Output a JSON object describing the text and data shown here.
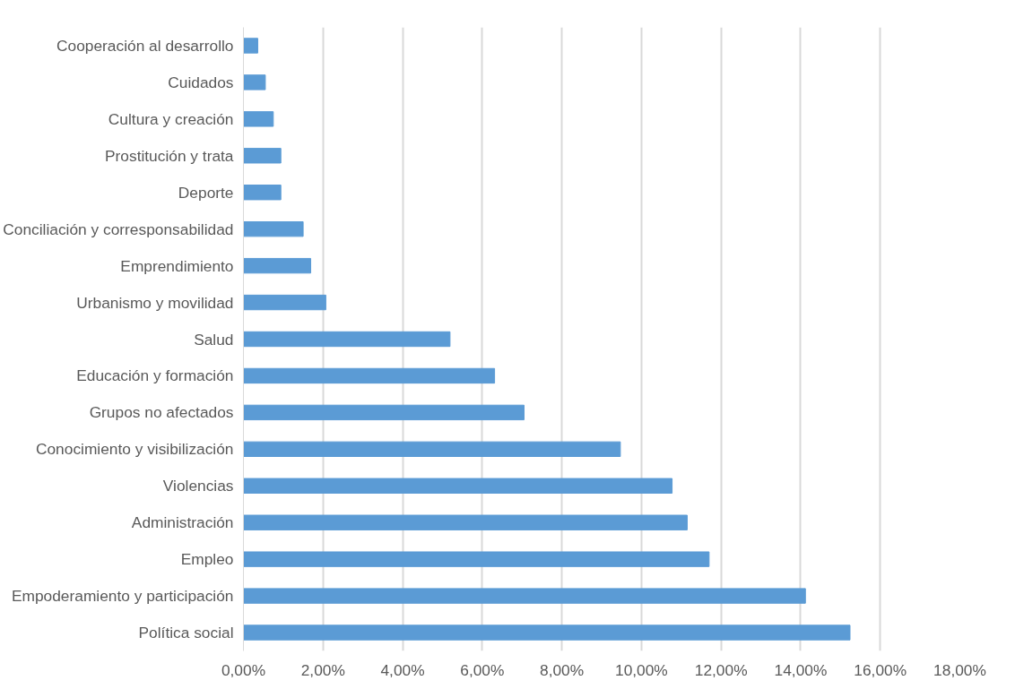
{
  "chart_data": {
    "type": "bar",
    "orientation": "horizontal",
    "categories": [
      "Cooperación al desarrollo",
      "Cuidados",
      "Cultura y creación",
      "Prostitución y trata",
      "Deporte",
      "Conciliación y corresponsabilidad",
      "Emprendimiento",
      "Urbanismo y movilidad",
      "Salud",
      "Educación y formación",
      "Grupos no afectados",
      "Conocimiento y visibilización",
      "Violencias",
      "Administración",
      "Empleo",
      "Empoderamiento y participación",
      "Política social"
    ],
    "values": [
      0.36,
      0.55,
      0.75,
      0.94,
      0.94,
      1.5,
      1.69,
      2.07,
      5.19,
      6.31,
      7.05,
      9.47,
      10.77,
      11.15,
      11.7,
      14.12,
      15.24
    ],
    "color": "#5b9bd5",
    "xlim": [
      0,
      18
    ],
    "xticks": [
      {
        "value": 0,
        "label": "0,00%"
      },
      {
        "value": 2,
        "label": "2,00%"
      },
      {
        "value": 4,
        "label": "4,00%"
      },
      {
        "value": 6,
        "label": "6,00%"
      },
      {
        "value": 8,
        "label": "8,00%"
      },
      {
        "value": 10,
        "label": "10,00%"
      },
      {
        "value": 12,
        "label": "12,00%"
      },
      {
        "value": 14,
        "label": "14,00%"
      },
      {
        "value": 16,
        "label": "16,00%"
      },
      {
        "value": 18,
        "label": "18,00%"
      }
    ],
    "grid": "x"
  }
}
